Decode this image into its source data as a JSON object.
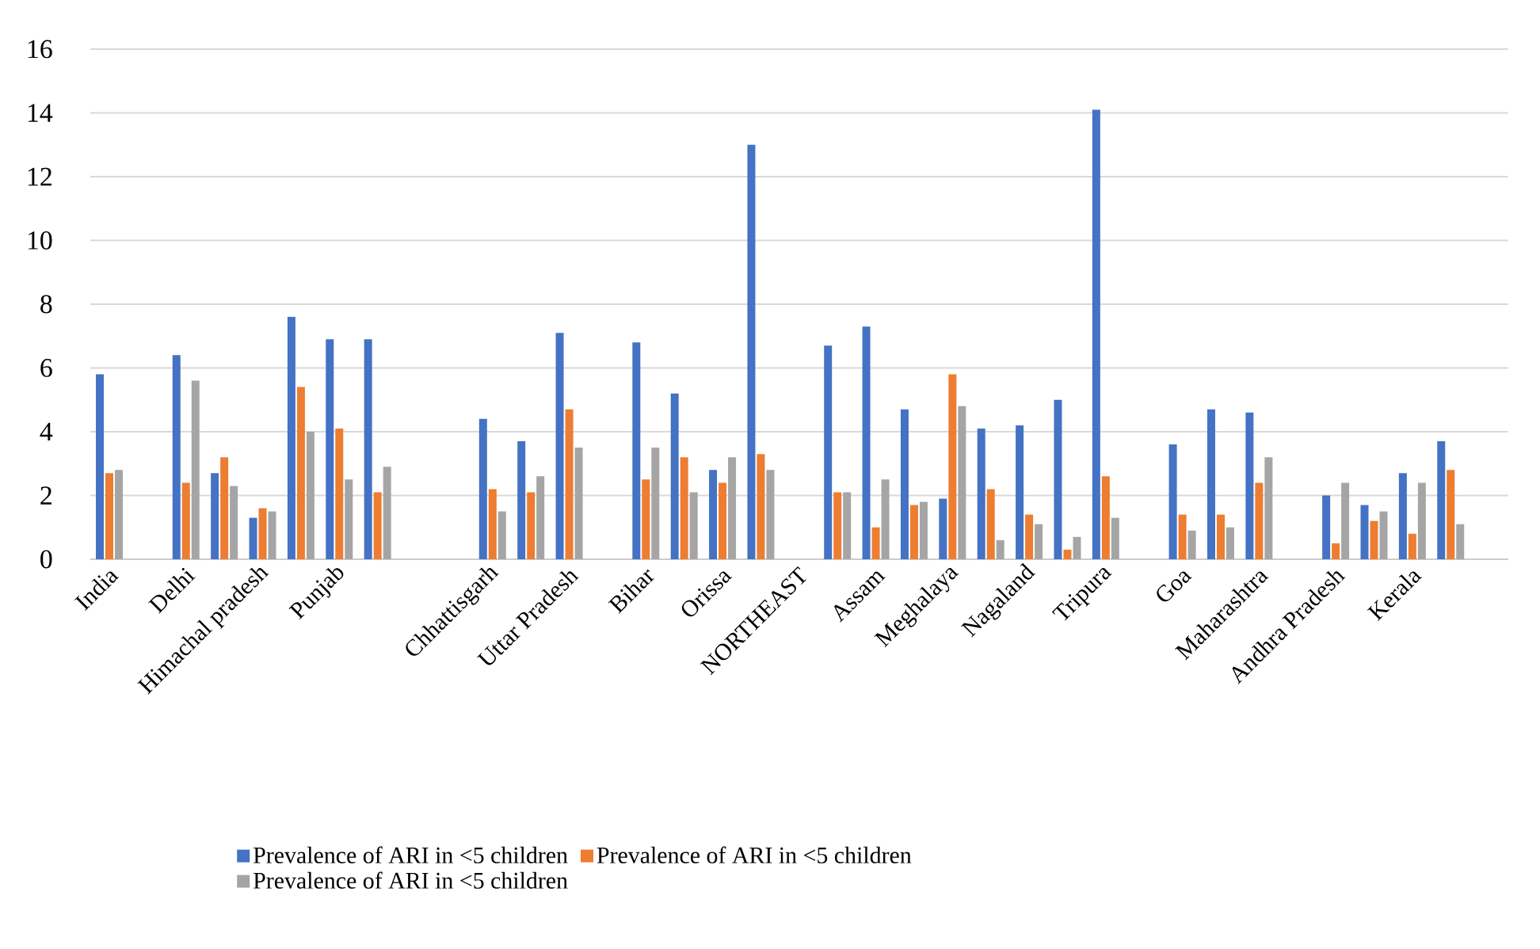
{
  "chart_data": {
    "type": "bar",
    "categories": [
      "India",
      null,
      "Delhi",
      null,
      "Himachal pradesh",
      null,
      "Punjab",
      null,
      null,
      null,
      "Chhattisgarh",
      null,
      "Uttar Pradesh",
      null,
      "Bihar",
      null,
      "Orissa",
      null,
      "NORTHEAST",
      null,
      "Assam",
      null,
      "Meghalaya",
      null,
      "Nagaland",
      null,
      "Tripura",
      null,
      "Goa",
      null,
      "Maharashtra",
      null,
      "Andhra Pradesh",
      null,
      "Kerala",
      null,
      null
    ],
    "series": [
      {
        "name": "Prevalence of ARI in <5 children",
        "color": "#4472c4",
        "values": [
          5.8,
          null,
          6.4,
          2.7,
          1.3,
          7.6,
          6.9,
          6.9,
          null,
          null,
          4.4,
          3.7,
          7.1,
          null,
          6.8,
          5.2,
          2.8,
          13.0,
          null,
          6.7,
          7.3,
          4.7,
          1.9,
          4.1,
          4.2,
          5.0,
          14.1,
          null,
          3.6,
          4.7,
          4.6,
          null,
          2.0,
          1.7,
          2.7,
          3.7,
          null
        ]
      },
      {
        "name": "Prevalence of ARI in <5 children",
        "color": "#ed7d31",
        "values": [
          2.7,
          null,
          2.4,
          3.2,
          1.6,
          5.4,
          4.1,
          2.1,
          null,
          null,
          2.2,
          2.1,
          4.7,
          null,
          2.5,
          3.2,
          2.4,
          3.3,
          null,
          2.1,
          1.0,
          1.7,
          5.8,
          2.2,
          1.4,
          0.3,
          2.6,
          null,
          1.4,
          1.4,
          2.4,
          null,
          0.5,
          1.2,
          0.8,
          2.8,
          null
        ]
      },
      {
        "name": "Prevalence of ARI in <5 children",
        "color": "#a5a5a5",
        "values": [
          2.8,
          null,
          5.6,
          2.3,
          1.5,
          4.0,
          2.5,
          2.9,
          null,
          null,
          1.5,
          2.6,
          3.5,
          null,
          3.5,
          2.1,
          3.2,
          2.8,
          null,
          2.1,
          2.5,
          1.8,
          4.8,
          0.6,
          1.1,
          0.7,
          1.3,
          null,
          0.9,
          1.0,
          3.2,
          null,
          2.4,
          1.5,
          2.4,
          1.1,
          null
        ]
      }
    ],
    "ylim": [
      0,
      16
    ],
    "yticks": [
      0,
      2,
      4,
      6,
      8,
      10,
      12,
      14,
      16
    ],
    "grid": "y",
    "legend": "bottom"
  }
}
